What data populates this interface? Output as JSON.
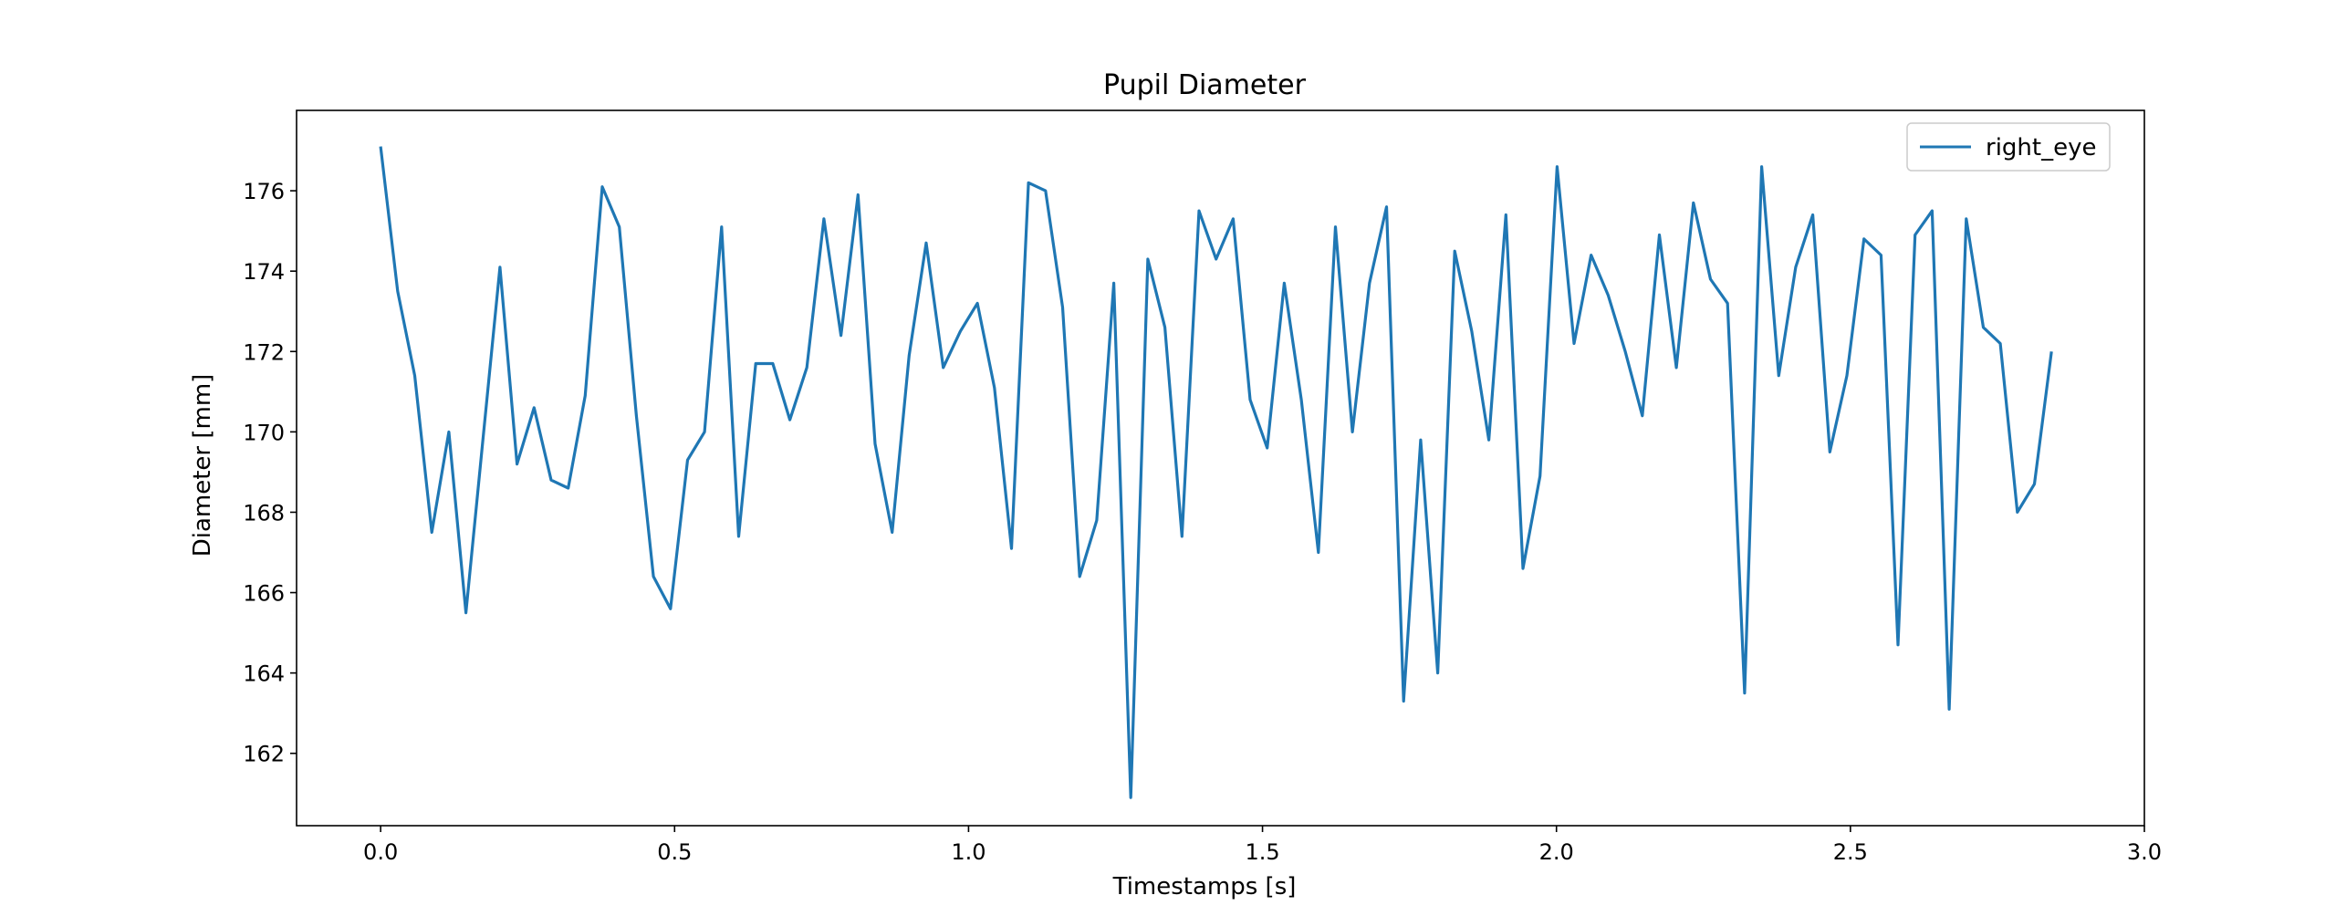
{
  "chart_data": {
    "type": "line",
    "title": "Pupil Diameter",
    "xlabel": "Timestamps [s]",
    "ylabel": "Diameter [mm]",
    "xlim": [
      -0.143,
      3.0
    ],
    "ylim": [
      160.2,
      178.0
    ],
    "xticks": [
      0.0,
      0.5,
      1.0,
      1.5,
      2.0,
      2.5,
      3.0
    ],
    "xtick_labels": [
      "0.0",
      "0.5",
      "1.0",
      "1.5",
      "2.0",
      "2.5",
      "3.0"
    ],
    "yticks": [
      162,
      164,
      166,
      168,
      170,
      172,
      174,
      176
    ],
    "ytick_labels": [
      "162",
      "164",
      "166",
      "168",
      "170",
      "172",
      "174",
      "176"
    ],
    "grid": false,
    "legend": {
      "position": "top-right",
      "entries": [
        "right_eye"
      ]
    },
    "series": [
      {
        "name": "right_eye",
        "color": "#1f77b4",
        "x_start": 0.0,
        "x_step": 0.029,
        "values": [
          177.1,
          173.5,
          171.4,
          167.5,
          170.0,
          165.5,
          169.8,
          174.1,
          169.2,
          170.6,
          168.8,
          168.6,
          170.9,
          176.1,
          175.1,
          170.4,
          166.4,
          165.6,
          169.3,
          170.0,
          175.1,
          167.4,
          171.7,
          171.7,
          170.3,
          171.6,
          175.3,
          172.4,
          175.9,
          169.7,
          167.5,
          171.9,
          174.7,
          171.6,
          172.5,
          173.2,
          171.1,
          167.1,
          176.2,
          176.0,
          173.1,
          166.4,
          167.8,
          173.7,
          160.9,
          174.3,
          172.6,
          167.4,
          175.5,
          174.3,
          175.3,
          170.8,
          169.6,
          173.7,
          170.8,
          167.0,
          175.1,
          170.0,
          173.7,
          175.6,
          163.3,
          169.8,
          164.0,
          174.5,
          172.5,
          169.8,
          175.4,
          166.6,
          168.9,
          176.6,
          172.2,
          174.4,
          173.4,
          172.0,
          170.4,
          174.9,
          171.6,
          175.7,
          173.8,
          173.2,
          163.5,
          176.6,
          171.4,
          174.1,
          175.4,
          169.5,
          171.4,
          174.8,
          174.4,
          164.7,
          174.9,
          175.5,
          163.1,
          175.3,
          172.6,
          172.2,
          168.0,
          168.7,
          172.0
        ]
      }
    ]
  }
}
